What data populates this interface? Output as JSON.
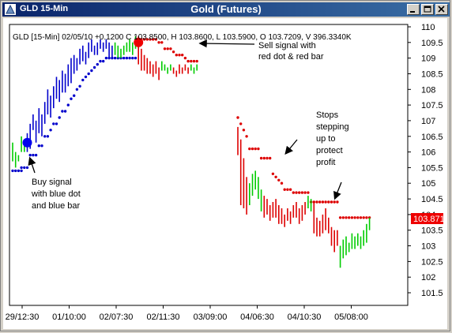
{
  "window": {
    "title_left": "GLD 15-Min",
    "title_center": "Gold (Futures)",
    "minimize_label": "minimize",
    "maximize_label": "maximize",
    "close_label": "close",
    "colors": {
      "titlebar": "#0a246a",
      "chrome": "#d4d0c8"
    }
  },
  "chart_data": {
    "type": "bar",
    "header": "GLD [15-Min] 02/05/10  +0.1200 C 103.8500, H 103.8600, L 103.5900, O 103.7209, V 396.3340K",
    "title": "Gold (Futures)",
    "ylim": [
      101.5,
      110
    ],
    "yticks": [
      "110",
      "109.5",
      "109",
      "108.5",
      "108",
      "107.5",
      "107",
      "106.5",
      "106",
      "105.5",
      "105",
      "104.5",
      "104",
      "103.5",
      "103",
      "102.5",
      "102",
      "101.5"
    ],
    "xticks": [
      "29/12:30",
      "01/10:00",
      "02/07:30",
      "02/11:30",
      "03/09:00",
      "04/06:30",
      "04/10:30",
      "05/08:00"
    ],
    "last_price": "103.871",
    "grid": false,
    "series": [
      {
        "color": "#00cc00",
        "bars": [
          [
            0,
            106.3,
            105.7
          ],
          [
            1,
            106.0,
            105.5
          ],
          [
            2,
            105.9,
            105.7
          ],
          [
            3,
            106.5,
            106.0
          ],
          [
            4,
            106.3,
            106.0
          ]
        ]
      },
      {
        "color": "#0000cc",
        "bars": [
          [
            5,
            106.6,
            106.0
          ],
          [
            6,
            106.9,
            106.1
          ],
          [
            7,
            107.2,
            106.7
          ],
          [
            8,
            107.0,
            106.3
          ],
          [
            9,
            107.4,
            106.6
          ],
          [
            10,
            107.2,
            106.5
          ],
          [
            11,
            107.6,
            106.9
          ],
          [
            12,
            108.0,
            107.2
          ],
          [
            13,
            107.8,
            107.1
          ],
          [
            14,
            108.1,
            107.4
          ],
          [
            15,
            108.4,
            107.7
          ],
          [
            16,
            108.3,
            107.6
          ],
          [
            17,
            108.6,
            107.9
          ],
          [
            18,
            108.5,
            107.9
          ],
          [
            19,
            108.8,
            108.1
          ],
          [
            20,
            109.0,
            108.2
          ],
          [
            21,
            109.1,
            108.5
          ],
          [
            22,
            109.0,
            108.6
          ],
          [
            23,
            109.3,
            108.8
          ],
          [
            24,
            109.4,
            108.9
          ],
          [
            25,
            109.2,
            108.8
          ],
          [
            26,
            109.5,
            109.0
          ],
          [
            27,
            109.6,
            109.2
          ],
          [
            28,
            109.4,
            109.1
          ],
          [
            29,
            109.5,
            109.1
          ],
          [
            30,
            109.6,
            109.3
          ],
          [
            31,
            109.5,
            109.2
          ],
          [
            32,
            109.6,
            109.3
          ],
          [
            33,
            109.5,
            109.0
          ],
          [
            34,
            109.4,
            109.0
          ]
        ]
      },
      {
        "color": "#00cc00",
        "bars": [
          [
            35,
            109.5,
            109.1
          ],
          [
            36,
            109.4,
            109.0
          ],
          [
            37,
            109.3,
            109.0
          ],
          [
            38,
            109.4,
            109.1
          ],
          [
            39,
            109.5,
            109.2
          ],
          [
            40,
            109.6,
            109.2
          ],
          [
            41,
            109.5,
            109.1
          ],
          [
            42,
            109.7,
            109.3
          ]
        ]
      },
      {
        "color": "#dd0000",
        "bars": [
          [
            43,
            109.7,
            108.8
          ],
          [
            44,
            109.3,
            108.6
          ],
          [
            45,
            109.1,
            108.6
          ],
          [
            46,
            109.0,
            108.5
          ],
          [
            47,
            108.9,
            108.5
          ],
          [
            48,
            108.8,
            108.4
          ],
          [
            49,
            108.9,
            108.5
          ],
          [
            50,
            108.7,
            108.3
          ]
        ]
      },
      {
        "color": "#00cc00",
        "bars": [
          [
            51,
            108.9,
            108.6
          ],
          [
            52,
            108.8,
            108.6
          ],
          [
            53,
            108.7,
            108.5
          ],
          [
            54,
            108.8,
            108.6
          ]
        ]
      },
      {
        "color": "#dd0000",
        "bars": [
          [
            55,
            108.7,
            108.5
          ],
          [
            56,
            108.6,
            108.4
          ],
          [
            57,
            108.8,
            108.5
          ],
          [
            58,
            108.7,
            108.5
          ],
          [
            59,
            108.8,
            108.6
          ],
          [
            60,
            108.7,
            108.5
          ]
        ]
      },
      {
        "color": "#00cc00",
        "bars": [
          [
            61,
            108.8,
            108.6
          ],
          [
            62,
            108.7,
            108.5
          ],
          [
            63,
            108.8,
            108.6
          ]
        ]
      },
      {
        "color": "#dd0000",
        "bars": [
          [
            77,
            106.8,
            105.9
          ],
          [
            78,
            106.4,
            104.3
          ],
          [
            79,
            105.8,
            104.2
          ],
          [
            80,
            105.2,
            104.0
          ]
        ]
      },
      {
        "color": "#00cc00",
        "bars": [
          [
            81,
            105.0,
            104.3
          ],
          [
            82,
            105.3,
            104.6
          ],
          [
            83,
            105.4,
            104.8
          ],
          [
            84,
            105.2,
            104.5
          ],
          [
            85,
            104.8,
            104.1
          ]
        ]
      },
      {
        "color": "#dd0000",
        "bars": [
          [
            86,
            104.6,
            103.9
          ],
          [
            87,
            104.5,
            104.0
          ],
          [
            88,
            104.3,
            103.8
          ],
          [
            89,
            104.4,
            103.9
          ],
          [
            90,
            104.5,
            103.9
          ],
          [
            91,
            104.3,
            103.7
          ],
          [
            92,
            104.2,
            103.7
          ],
          [
            93,
            104.0,
            103.6
          ],
          [
            94,
            104.2,
            103.8
          ],
          [
            95,
            104.1,
            103.7
          ],
          [
            96,
            104.3,
            103.9
          ],
          [
            97,
            104.4,
            103.9
          ],
          [
            98,
            104.2,
            103.7
          ],
          [
            99,
            104.3,
            103.8
          ],
          [
            100,
            104.4,
            104.0
          ]
        ]
      },
      {
        "color": "#00cc00",
        "bars": [
          [
            101,
            104.6,
            104.2
          ],
          [
            102,
            104.5,
            104.1
          ]
        ]
      },
      {
        "color": "#dd0000",
        "bars": [
          [
            103,
            104.4,
            103.4
          ],
          [
            104,
            103.9,
            103.3
          ],
          [
            105,
            103.8,
            103.3
          ],
          [
            106,
            104.0,
            103.4
          ],
          [
            107,
            104.2,
            103.5
          ],
          [
            108,
            103.9,
            103.4
          ],
          [
            109,
            103.6,
            103.0
          ],
          [
            110,
            103.5,
            102.8
          ],
          [
            111,
            103.5,
            103.0
          ]
        ]
      },
      {
        "color": "#00cc00",
        "bars": [
          [
            112,
            103.0,
            102.3
          ],
          [
            113,
            103.2,
            102.6
          ],
          [
            114,
            103.3,
            102.7
          ],
          [
            115,
            103.1,
            102.8
          ],
          [
            116,
            103.4,
            102.9
          ],
          [
            117,
            103.3,
            102.9
          ],
          [
            118,
            103.4,
            103.0
          ],
          [
            119,
            103.3,
            102.9
          ],
          [
            120,
            103.5,
            103.0
          ],
          [
            121,
            103.7,
            103.1
          ],
          [
            122,
            103.9,
            103.5
          ]
        ]
      }
    ],
    "stops": [
      {
        "color": "#0000cc",
        "points": [
          [
            0,
            105.4
          ],
          [
            1,
            105.4
          ],
          [
            2,
            105.4
          ],
          [
            3,
            105.4
          ],
          [
            3,
            105.5
          ],
          [
            4,
            105.5
          ],
          [
            5,
            105.5
          ],
          [
            6,
            105.9
          ],
          [
            7,
            105.9
          ],
          [
            8,
            105.9
          ],
          [
            9,
            106.2
          ],
          [
            10,
            106.2
          ],
          [
            11,
            106.5
          ],
          [
            12,
            106.5
          ],
          [
            13,
            106.7
          ],
          [
            14,
            106.9
          ],
          [
            15,
            106.9
          ],
          [
            16,
            107.1
          ],
          [
            17,
            107.3
          ],
          [
            18,
            107.3
          ],
          [
            19,
            107.5
          ],
          [
            20,
            107.7
          ],
          [
            21,
            107.8
          ],
          [
            22,
            108.0
          ],
          [
            23,
            108.1
          ],
          [
            24,
            108.3
          ],
          [
            25,
            108.4
          ],
          [
            26,
            108.5
          ],
          [
            27,
            108.6
          ],
          [
            28,
            108.7
          ],
          [
            29,
            108.8
          ],
          [
            30,
            108.9
          ],
          [
            31,
            108.9
          ],
          [
            32,
            109.0
          ],
          [
            33,
            109.0
          ],
          [
            34,
            109.0
          ],
          [
            35,
            109.0
          ],
          [
            36,
            109.0
          ],
          [
            37,
            109.0
          ],
          [
            38,
            109.0
          ],
          [
            39,
            109.0
          ],
          [
            40,
            109.0
          ],
          [
            41,
            109.0
          ],
          [
            42,
            109.0
          ]
        ]
      },
      {
        "color": "#dd0000",
        "points": [
          [
            43,
            109.6
          ],
          [
            44,
            109.6
          ],
          [
            45,
            109.6
          ],
          [
            46,
            109.6
          ],
          [
            47,
            109.6
          ],
          [
            48,
            109.6
          ],
          [
            49,
            109.6
          ],
          [
            50,
            109.5
          ],
          [
            51,
            109.5
          ],
          [
            52,
            109.3
          ],
          [
            53,
            109.3
          ],
          [
            54,
            109.3
          ],
          [
            55,
            109.2
          ],
          [
            56,
            109.1
          ],
          [
            57,
            109.1
          ],
          [
            58,
            109.1
          ],
          [
            59,
            109.0
          ],
          [
            60,
            108.9
          ],
          [
            61,
            108.9
          ],
          [
            62,
            108.9
          ],
          [
            63,
            108.9
          ],
          [
            77,
            107.1
          ],
          [
            78,
            106.9
          ],
          [
            79,
            106.7
          ],
          [
            80,
            106.5
          ],
          [
            81,
            106.1
          ],
          [
            82,
            106.1
          ],
          [
            83,
            106.1
          ],
          [
            84,
            106.1
          ],
          [
            85,
            105.8
          ],
          [
            86,
            105.8
          ],
          [
            87,
            105.8
          ],
          [
            88,
            105.8
          ],
          [
            89,
            105.3
          ],
          [
            90,
            105.2
          ],
          [
            91,
            105.1
          ],
          [
            92,
            105.0
          ],
          [
            93,
            104.8
          ],
          [
            94,
            104.8
          ],
          [
            95,
            104.8
          ],
          [
            96,
            104.7
          ],
          [
            97,
            104.7
          ],
          [
            98,
            104.7
          ],
          [
            99,
            104.7
          ],
          [
            100,
            104.7
          ],
          [
            101,
            104.7
          ],
          [
            102,
            104.4
          ],
          [
            103,
            104.4
          ],
          [
            104,
            104.4
          ],
          [
            105,
            104.4
          ],
          [
            106,
            104.4
          ],
          [
            107,
            104.4
          ],
          [
            108,
            104.4
          ],
          [
            109,
            104.4
          ],
          [
            110,
            104.4
          ],
          [
            111,
            104.4
          ],
          [
            112,
            103.9
          ],
          [
            113,
            103.9
          ],
          [
            114,
            103.9
          ],
          [
            115,
            103.9
          ],
          [
            116,
            103.9
          ],
          [
            117,
            103.9
          ],
          [
            118,
            103.9
          ],
          [
            119,
            103.9
          ],
          [
            120,
            103.9
          ],
          [
            121,
            103.9
          ],
          [
            122,
            103.9
          ]
        ]
      }
    ],
    "signals": [
      {
        "kind": "buy",
        "color": "#0000ee",
        "x": 5,
        "y": 106.3
      },
      {
        "kind": "sell",
        "color": "#ee0000",
        "x": 43,
        "y": 109.5
      }
    ],
    "annotations": [
      {
        "lines": [
          "Buy signal",
          "with blue dot",
          "and blue bar"
        ]
      },
      {
        "lines": [
          "Sell signal with",
          "red dot & red bar"
        ]
      },
      {
        "lines": [
          "Stops",
          "stepping",
          "up to",
          "protect",
          "profit"
        ]
      }
    ]
  }
}
